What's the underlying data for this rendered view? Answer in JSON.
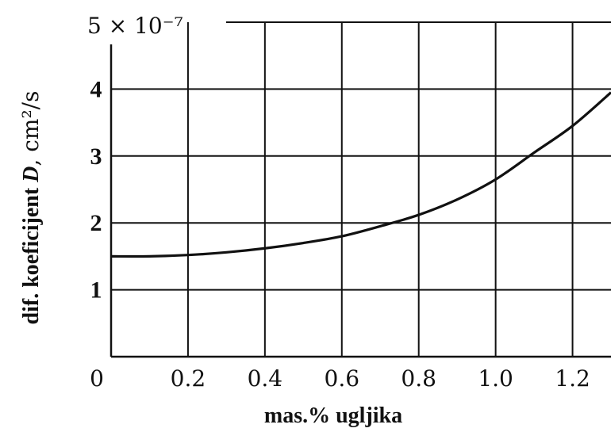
{
  "chart_data": {
    "type": "line",
    "xlabel": "mas.% ugljika",
    "ylabel_prefix": "dif. koeficijent ",
    "ylabel_var": "D",
    "ylabel_unit": ", cm²/s",
    "y_scale_label": "5 × 10⁻⁷",
    "xlim": [
      0,
      1.3
    ],
    "ylim": [
      0,
      5
    ],
    "x_ticks": [
      0,
      0.2,
      0.4,
      0.6,
      0.8,
      1.0,
      1.2
    ],
    "x_tick_labels": [
      "0",
      "0.2",
      "0.4",
      "0.6",
      "0.8",
      "1.0",
      "1.2"
    ],
    "y_ticks": [
      1,
      2,
      3,
      4
    ],
    "y_tick_labels": [
      "1",
      "2",
      "3",
      "4"
    ],
    "grid": true,
    "series": [
      {
        "x": [
          0,
          0.1,
          0.2,
          0.3,
          0.4,
          0.5,
          0.6,
          0.7,
          0.8,
          0.9,
          1.0,
          1.1,
          1.2,
          1.3
        ],
        "y": [
          1.5,
          1.5,
          1.52,
          1.56,
          1.62,
          1.7,
          1.8,
          1.95,
          2.12,
          2.35,
          2.65,
          3.05,
          3.45,
          3.95
        ]
      }
    ]
  }
}
